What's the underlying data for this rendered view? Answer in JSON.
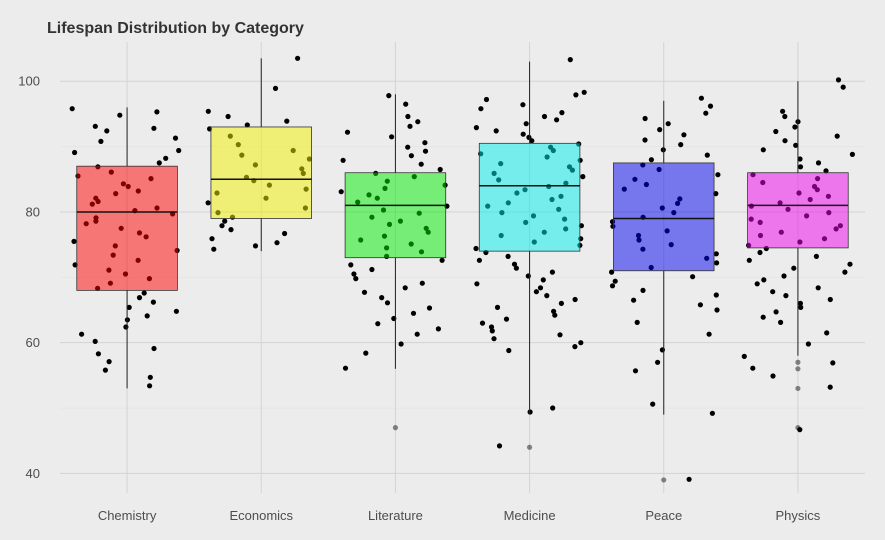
{
  "chart_data": {
    "type": "box",
    "title": "Lifespan Distribution by Category",
    "xlabel": "",
    "ylabel": "",
    "ylim": [
      37,
      106
    ],
    "yticks": [
      40,
      60,
      80,
      100
    ],
    "grid": true,
    "legend": "none",
    "categories": [
      "Chemistry",
      "Economics",
      "Literature",
      "Medicine",
      "Peace",
      "Physics"
    ],
    "colors": [
      "#ff0000",
      "#f2f200",
      "#00ee00",
      "#00eeee",
      "#0000ee",
      "#ee00ee"
    ],
    "boxes": [
      {
        "category": "Chemistry",
        "min": 53,
        "q1": 68,
        "median": 80,
        "q3": 87,
        "max": 96,
        "outliers": []
      },
      {
        "category": "Economics",
        "min": 74,
        "q1": 79,
        "median": 85,
        "q3": 93,
        "max": 103.5,
        "outliers": []
      },
      {
        "category": "Literature",
        "min": 56,
        "q1": 73,
        "median": 81,
        "q3": 86,
        "max": 98,
        "outliers": [
          47
        ]
      },
      {
        "category": "Medicine",
        "min": 49,
        "q1": 74,
        "median": 84,
        "q3": 90.5,
        "max": 103,
        "outliers": [
          44
        ]
      },
      {
        "category": "Peace",
        "min": 49,
        "q1": 71,
        "median": 79,
        "q3": 87.5,
        "max": 97,
        "outliers": [
          39
        ]
      },
      {
        "category": "Physics",
        "min": 58,
        "q1": 74.5,
        "median": 81,
        "q3": 86,
        "max": 100,
        "outliers": [
          57,
          56,
          53,
          47
        ]
      }
    ],
    "points": {
      "Chemistry": [
        95.8,
        95.3,
        94.8,
        93.1,
        92.8,
        92.4,
        91.3,
        90.8,
        89.4,
        89.1,
        88.2,
        87.5,
        86.9,
        86.1,
        85.5,
        85.1,
        84.3,
        83.9,
        83.2,
        82.8,
        82.1,
        81.6,
        81.2,
        80.6,
        80.2,
        79.7,
        79.1,
        78.6,
        78.2,
        77.5,
        76.8,
        76.2,
        75.5,
        74.8,
        74.1,
        73.4,
        72.6,
        71.9,
        71.1,
        70.5,
        69.8,
        69.1,
        68.3,
        67.6,
        66.9,
        66.2,
        65.4,
        64.8,
        64.1,
        63.5,
        62.4,
        61.3,
        60.2,
        59.1,
        58.3,
        57.1,
        55.8,
        54.7,
        53.4
      ],
      "Economics": [
        103.5,
        98.9,
        95.4,
        94.6,
        93.9,
        93.3,
        92.7,
        91.6,
        90.3,
        89.4,
        88.7,
        88.1,
        87.2,
        86.6,
        85.9,
        85.3,
        84.8,
        84.1,
        83.5,
        82.9,
        82.1,
        81.4,
        80.6,
        79.9,
        79.2,
        78.6,
        77.9,
        77.3,
        76.7,
        75.9,
        75.3,
        74.8,
        74.3
      ],
      "Literature": [
        97.8,
        96.5,
        94.6,
        93.8,
        93.1,
        92.2,
        91.5,
        90.6,
        89.9,
        89.3,
        88.6,
        87.9,
        87.3,
        86.5,
        85.9,
        85.4,
        84.7,
        84.1,
        83.6,
        83.1,
        82.6,
        82.1,
        81.5,
        80.9,
        80.3,
        79.8,
        79.2,
        78.6,
        78.1,
        77.5,
        76.9,
        76.3,
        75.7,
        75.1,
        74.5,
        73.9,
        73.2,
        72.6,
        71.9,
        71.2,
        70.5,
        69.8,
        69.1,
        68.4,
        67.7,
        66.9,
        66.1,
        65.3,
        64.5,
        63.7,
        62.9,
        62.1,
        61.3,
        59.8,
        58.4,
        56.1
      ],
      "Medicine": [
        103.3,
        98.3,
        97.9,
        97.2,
        96.4,
        95.8,
        95.2,
        94.6,
        94.1,
        93.5,
        92.9,
        92.4,
        91.9,
        91.4,
        90.9,
        90.4,
        89.9,
        89.4,
        88.9,
        88.4,
        87.9,
        87.4,
        86.9,
        86.4,
        85.9,
        85.4,
        84.9,
        84.4,
        83.9,
        83.4,
        82.9,
        82.4,
        81.9,
        81.4,
        80.9,
        80.4,
        79.9,
        79.4,
        78.9,
        78.4,
        77.9,
        77.4,
        76.9,
        76.4,
        75.9,
        75.4,
        74.9,
        74.4,
        73.8,
        73.2,
        72.6,
        72.0,
        71.4,
        70.8,
        70.2,
        69.6,
        69.0,
        68.4,
        67.8,
        67.2,
        66.6,
        66.0,
        65.4,
        64.8,
        64.2,
        63.6,
        63.0,
        62.4,
        61.8,
        61.2,
        60.6,
        60.0,
        59.4,
        58.8,
        50.0,
        49.4,
        44.2
      ],
      "Peace": [
        97.4,
        96.2,
        95.1,
        94.3,
        93.5,
        92.6,
        91.8,
        91.0,
        90.3,
        89.5,
        88.7,
        88.0,
        87.2,
        86.5,
        85.7,
        85.0,
        84.2,
        83.5,
        82.8,
        82.0,
        81.3,
        80.6,
        79.9,
        79.2,
        78.5,
        77.8,
        77.1,
        76.4,
        75.7,
        75.0,
        74.3,
        73.6,
        72.9,
        72.2,
        71.5,
        70.8,
        70.1,
        69.4,
        68.7,
        68.0,
        67.3,
        66.5,
        65.8,
        65.0,
        63.1,
        61.3,
        58.9,
        57.0,
        55.7,
        50.6,
        49.2,
        39.1
      ],
      "Physics": [
        100.2,
        99.1,
        95.4,
        94.6,
        93.8,
        93.0,
        92.3,
        91.6,
        90.9,
        90.2,
        89.5,
        88.8,
        88.1,
        87.5,
        86.9,
        86.3,
        85.7,
        85.1,
        84.5,
        83.9,
        83.4,
        82.9,
        82.4,
        81.9,
        81.4,
        80.9,
        80.4,
        79.9,
        79.4,
        78.9,
        78.4,
        77.9,
        77.4,
        76.9,
        76.4,
        75.9,
        75.4,
        74.9,
        74.4,
        73.8,
        73.2,
        72.6,
        72.0,
        71.4,
        70.8,
        70.2,
        69.6,
        69.0,
        68.4,
        67.8,
        67.2,
        66.6,
        66.0,
        65.4,
        64.7,
        63.9,
        63.1,
        61.5,
        59.8,
        57.9,
        56.9,
        56.1,
        54.9,
        53.2,
        46.7
      ]
    }
  }
}
